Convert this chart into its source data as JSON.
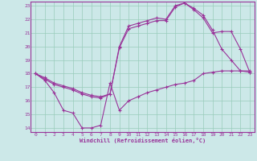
{
  "xlabel": "Windchill (Refroidissement éolien,°C)",
  "bg_color": "#cce8e8",
  "grid_color": "#99ccbb",
  "line_color": "#993399",
  "xlim": [
    -0.5,
    23.5
  ],
  "ylim": [
    13.7,
    23.3
  ],
  "yticks": [
    14,
    15,
    16,
    17,
    18,
    19,
    20,
    21,
    22,
    23
  ],
  "xticks": [
    0,
    1,
    2,
    3,
    4,
    5,
    6,
    7,
    8,
    9,
    10,
    11,
    12,
    13,
    14,
    15,
    16,
    17,
    18,
    19,
    20,
    21,
    22,
    23
  ],
  "line1_x": [
    0,
    1,
    2,
    3,
    4,
    5,
    6,
    7,
    8,
    9,
    10,
    11,
    12,
    13,
    14,
    15,
    16,
    17,
    18,
    19,
    20,
    21,
    22,
    23
  ],
  "line1_y": [
    18.0,
    17.5,
    16.6,
    15.3,
    15.1,
    14.0,
    14.0,
    14.2,
    17.3,
    15.3,
    16.0,
    16.3,
    16.6,
    16.8,
    17.0,
    17.2,
    17.3,
    17.5,
    18.0,
    18.1,
    18.2,
    18.2,
    18.2,
    18.2
  ],
  "line2_x": [
    0,
    1,
    2,
    3,
    4,
    5,
    6,
    7,
    8,
    9,
    10,
    11,
    12,
    13,
    14,
    15,
    16,
    17,
    18,
    19,
    20,
    21,
    22,
    23
  ],
  "line2_y": [
    18.0,
    17.6,
    17.2,
    17.0,
    16.8,
    16.5,
    16.3,
    16.2,
    16.5,
    20.0,
    21.5,
    21.7,
    21.9,
    22.1,
    22.0,
    23.0,
    23.2,
    22.8,
    22.3,
    21.2,
    19.8,
    19.0,
    18.2,
    18.1
  ],
  "line3_x": [
    0,
    1,
    2,
    3,
    4,
    5,
    6,
    7,
    8,
    9,
    10,
    11,
    12,
    13,
    14,
    15,
    16,
    17,
    18,
    19,
    20,
    21,
    22,
    23
  ],
  "line3_y": [
    18.0,
    17.7,
    17.3,
    17.1,
    16.9,
    16.6,
    16.4,
    16.3,
    16.5,
    19.9,
    21.3,
    21.5,
    21.7,
    21.9,
    21.9,
    22.9,
    23.2,
    22.7,
    22.1,
    21.0,
    21.1,
    21.1,
    19.8,
    18.1
  ]
}
